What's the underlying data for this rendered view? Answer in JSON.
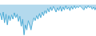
{
  "chart_data": {
    "type": "area",
    "x": [
      0,
      1,
      2,
      3,
      4,
      5,
      6,
      7,
      8,
      9,
      10,
      11,
      12,
      13,
      14,
      15,
      16,
      17,
      18,
      19,
      20,
      21,
      22,
      23,
      24,
      25,
      26,
      27,
      28,
      29,
      30,
      31,
      32,
      33,
      34,
      35,
      36,
      37,
      38,
      39,
      40,
      41,
      42,
      43,
      44,
      45,
      46,
      47,
      48,
      49,
      50,
      51,
      52,
      53,
      54,
      55,
      56,
      57,
      58,
      59,
      60,
      61,
      62,
      63,
      64,
      65,
      66,
      67,
      68,
      69
    ],
    "values": [
      -1.2,
      -2.1,
      -1.0,
      -2.5,
      -1.3,
      -2.8,
      -1.5,
      -2.2,
      -1.4,
      -2.0,
      -1.1,
      -1.8,
      -1.3,
      -2.3,
      -1.6,
      -3.0,
      -2.0,
      -4.2,
      -2.8,
      -3.5,
      -2.2,
      -2.8,
      -3.5,
      -2.5,
      -1.8,
      -2.2,
      -1.5,
      -2.0,
      -1.2,
      -1.8,
      -1.0,
      -1.5,
      -0.8,
      -1.2,
      -0.5,
      -1.0,
      -0.3,
      -0.8,
      -0.2,
      -0.6,
      -1.0,
      -0.4,
      -0.8,
      -0.2,
      -0.9,
      -0.3,
      -0.7,
      -0.1,
      -0.6,
      -0.3,
      -0.8,
      -0.2,
      -0.6,
      -0.1,
      -0.5,
      -0.2,
      -0.4,
      -0.1,
      -0.3,
      -0.5,
      -0.7,
      -0.2,
      -0.5,
      -0.1,
      -0.4,
      -0.2,
      -0.6,
      -0.3,
      -0.7,
      -0.2
    ],
    "colors": [
      "#b3d9ed",
      "#4dacd6"
    ],
    "xlim": [
      0,
      69
    ],
    "ylim": [
      -4.41,
      0.63
    ],
    "tick_labels": false,
    "grid": false
  }
}
